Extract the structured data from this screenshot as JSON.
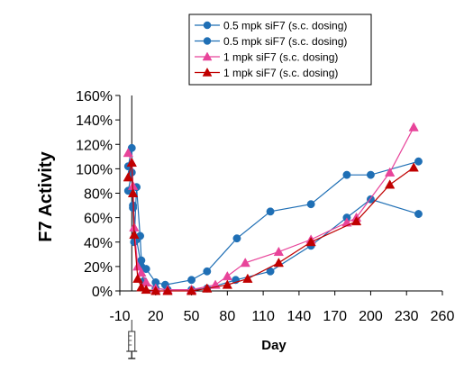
{
  "chart_data": {
    "type": "line",
    "title": "",
    "xlabel": "Day",
    "ylabel": "F7 Activity",
    "xlim": [
      -10,
      260
    ],
    "ylim": [
      0,
      160
    ],
    "x_ticks": [
      -10,
      20,
      50,
      80,
      110,
      140,
      170,
      200,
      230,
      260
    ],
    "y_ticks": [
      0,
      20,
      40,
      60,
      80,
      100,
      120,
      140,
      160
    ],
    "x_tick_labels": [
      "-10",
      "20",
      "50",
      "80",
      "110",
      "140",
      "170",
      "200",
      "230",
      "260"
    ],
    "y_tick_labels": [
      "0%",
      "20%",
      "40%",
      "60%",
      "80%",
      "100%",
      "120%",
      "140%",
      "160%"
    ],
    "grid": false,
    "legend_position": "top-right",
    "marker_line_day": 0,
    "icon": "syringe-icon",
    "series": [
      {
        "name": "0.5 mpk siF7 (s.c. dosing)",
        "color": "#1f6fb5",
        "marker": "circle",
        "points": [
          [
            -3,
            102
          ],
          [
            0,
            117
          ],
          [
            1,
            70
          ],
          [
            2,
            40
          ],
          [
            4,
            85
          ],
          [
            7,
            45
          ],
          [
            8,
            25
          ],
          [
            12,
            18
          ],
          [
            20,
            7
          ],
          [
            28,
            5
          ],
          [
            50,
            9
          ],
          [
            63,
            16
          ],
          [
            88,
            43
          ],
          [
            116,
            65
          ],
          [
            150,
            71
          ],
          [
            180,
            95
          ],
          [
            200,
            95
          ],
          [
            240,
            106
          ]
        ]
      },
      {
        "name": "0.5 mpk siF7 (s.c. dosing)",
        "color": "#1f6fb5",
        "marker": "circle",
        "points": [
          [
            -3,
            82
          ],
          [
            0,
            97
          ],
          [
            1,
            68
          ],
          [
            4,
            42
          ],
          [
            8,
            20
          ],
          [
            10,
            8
          ],
          [
            20,
            2
          ],
          [
            30,
            1
          ],
          [
            50,
            1
          ],
          [
            63,
            2
          ],
          [
            87,
            9
          ],
          [
            116,
            16
          ],
          [
            150,
            37
          ],
          [
            180,
            60
          ],
          [
            200,
            75
          ],
          [
            240,
            63
          ]
        ]
      },
      {
        "name": "1 mpk siF7 (s.c. dosing)",
        "color": "#e8449a",
        "marker": "triangle",
        "points": [
          [
            -3,
            113
          ],
          [
            0,
            105
          ],
          [
            1,
            86
          ],
          [
            2,
            52
          ],
          [
            5,
            20
          ],
          [
            8,
            15
          ],
          [
            12,
            7
          ],
          [
            20,
            2
          ],
          [
            30,
            1
          ],
          [
            50,
            1
          ],
          [
            70,
            5
          ],
          [
            80,
            12
          ],
          [
            95,
            23
          ],
          [
            123,
            32
          ],
          [
            150,
            42
          ],
          [
            180,
            56
          ],
          [
            188,
            60
          ],
          [
            216,
            97
          ],
          [
            236,
            134
          ]
        ]
      },
      {
        "name": "1 mpk siF7 (s.c. dosing)",
        "color": "#c00000",
        "marker": "triangle",
        "points": [
          [
            -3,
            93
          ],
          [
            0,
            105
          ],
          [
            1,
            80
          ],
          [
            2,
            46
          ],
          [
            5,
            10
          ],
          [
            8,
            3
          ],
          [
            12,
            1
          ],
          [
            20,
            0
          ],
          [
            30,
            0
          ],
          [
            50,
            0
          ],
          [
            63,
            2
          ],
          [
            80,
            5
          ],
          [
            97,
            10
          ],
          [
            123,
            23
          ],
          [
            150,
            40
          ],
          [
            188,
            57
          ],
          [
            216,
            87
          ],
          [
            236,
            101
          ]
        ]
      }
    ]
  }
}
